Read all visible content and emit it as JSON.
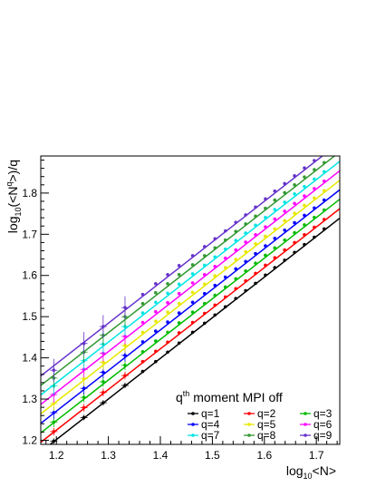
{
  "chart_data": {
    "type": "scatter",
    "title": "",
    "xlabel": "log10<N>",
    "ylabel": "log10(<N^q>)/q",
    "xlabel_parts": {
      "pre": "log",
      "sub": "10",
      "post": "<N>"
    },
    "ylabel_parts": {
      "pre": "log",
      "sub": "10",
      "mid": "(<N",
      "sup": "q",
      "post": ">)/q"
    },
    "xlim": [
      1.17,
      1.745
    ],
    "ylim": [
      1.19,
      1.89
    ],
    "xticks": [
      1.2,
      1.3,
      1.4,
      1.5,
      1.6,
      1.7
    ],
    "yticks": [
      1.2,
      1.3,
      1.4,
      1.5,
      1.6,
      1.7,
      1.8
    ],
    "grid": false,
    "legend": {
      "placement": "bottom-right",
      "title_pre": "q",
      "title_sup": "th",
      "title_post": " moment MPI off"
    },
    "x": [
      1.195,
      1.253,
      1.29,
      1.332,
      1.366,
      1.391,
      1.414,
      1.436,
      1.462,
      1.485,
      1.505,
      1.525,
      1.545,
      1.564,
      1.583,
      1.602,
      1.62,
      1.639,
      1.658,
      1.677,
      1.696,
      1.715
    ],
    "series": [
      {
        "name": "q=1",
        "color": "#000000",
        "fit": [
          [
            1.17,
            1.172
          ],
          [
            1.745,
            1.739
          ]
        ],
        "values": [
          1.198,
          1.255,
          1.291,
          1.333,
          1.367,
          1.391,
          1.414,
          1.436,
          1.462,
          1.484,
          1.504,
          1.524,
          1.544,
          1.563,
          1.581,
          1.601,
          1.619,
          1.637,
          1.656,
          1.675,
          1.693,
          1.713
        ]
      },
      {
        "name": "q=2",
        "color": "#ff0000",
        "fit": [
          [
            1.17,
            1.195
          ],
          [
            1.745,
            1.762
          ]
        ],
        "values": [
          1.221,
          1.279,
          1.316,
          1.357,
          1.391,
          1.416,
          1.438,
          1.461,
          1.486,
          1.508,
          1.528,
          1.548,
          1.568,
          1.587,
          1.605,
          1.625,
          1.643,
          1.662,
          1.68,
          1.699,
          1.717,
          1.736
        ]
      },
      {
        "name": "q=3",
        "color": "#00bb00",
        "fit": [
          [
            1.17,
            1.218
          ],
          [
            1.745,
            1.785
          ]
        ],
        "values": [
          1.244,
          1.304,
          1.342,
          1.382,
          1.415,
          1.441,
          1.462,
          1.485,
          1.511,
          1.532,
          1.552,
          1.572,
          1.592,
          1.611,
          1.63,
          1.649,
          1.667,
          1.686,
          1.704,
          1.723,
          1.741,
          1.759
        ]
      },
      {
        "name": "q=4",
        "color": "#0000ff",
        "fit": [
          [
            1.17,
            1.241
          ],
          [
            1.745,
            1.808
          ]
        ],
        "values": [
          1.267,
          1.326,
          1.365,
          1.406,
          1.439,
          1.465,
          1.487,
          1.509,
          1.535,
          1.556,
          1.576,
          1.596,
          1.616,
          1.634,
          1.653,
          1.672,
          1.69,
          1.71,
          1.728,
          1.746,
          1.764,
          1.783
        ]
      },
      {
        "name": "q=5",
        "color": "#e8e800",
        "fit": [
          [
            1.17,
            1.264
          ],
          [
            1.745,
            1.831
          ]
        ],
        "values": [
          1.289,
          1.349,
          1.389,
          1.43,
          1.462,
          1.489,
          1.511,
          1.532,
          1.559,
          1.579,
          1.599,
          1.619,
          1.639,
          1.658,
          1.677,
          1.695,
          1.713,
          1.733,
          1.751,
          1.77,
          1.788,
          1.806
        ]
      },
      {
        "name": "q=6",
        "color": "#ff00ff",
        "fit": [
          [
            1.17,
            1.287
          ],
          [
            1.745,
            1.854
          ]
        ],
        "values": [
          1.311,
          1.372,
          1.411,
          1.452,
          1.486,
          1.512,
          1.534,
          1.556,
          1.582,
          1.602,
          1.622,
          1.642,
          1.662,
          1.681,
          1.699,
          1.718,
          1.737,
          1.756,
          1.775,
          1.793,
          1.811,
          1.829
        ]
      },
      {
        "name": "q=7",
        "color": "#00e5e5",
        "fit": [
          [
            1.17,
            1.31
          ],
          [
            1.745,
            1.877
          ]
        ],
        "values": [
          1.332,
          1.393,
          1.433,
          1.476,
          1.509,
          1.535,
          1.557,
          1.579,
          1.604,
          1.625,
          1.645,
          1.664,
          1.685,
          1.703,
          1.722,
          1.741,
          1.76,
          1.778,
          1.798,
          1.816,
          1.834,
          1.852
        ]
      },
      {
        "name": "q=8",
        "color": "#339933",
        "fit": [
          [
            1.17,
            1.333
          ],
          [
            1.745,
            1.9
          ]
        ],
        "values": [
          1.351,
          1.414,
          1.455,
          1.5,
          1.532,
          1.558,
          1.58,
          1.602,
          1.626,
          1.648,
          1.667,
          1.686,
          1.707,
          1.725,
          1.744,
          1.763,
          1.783,
          1.801,
          1.82,
          1.839,
          1.857,
          1.874
        ]
      },
      {
        "name": "q=9",
        "color": "#6633cc",
        "fit": [
          [
            1.17,
            1.356
          ],
          [
            1.745,
            1.923
          ]
        ],
        "values": [
          1.37,
          1.435,
          1.476,
          1.522,
          1.554,
          1.58,
          1.602,
          1.624,
          1.648,
          1.67,
          1.689,
          1.708,
          1.729,
          1.747,
          1.766,
          1.786,
          1.805,
          1.823,
          1.842,
          1.861,
          1.879,
          1.896
        ]
      }
    ]
  }
}
